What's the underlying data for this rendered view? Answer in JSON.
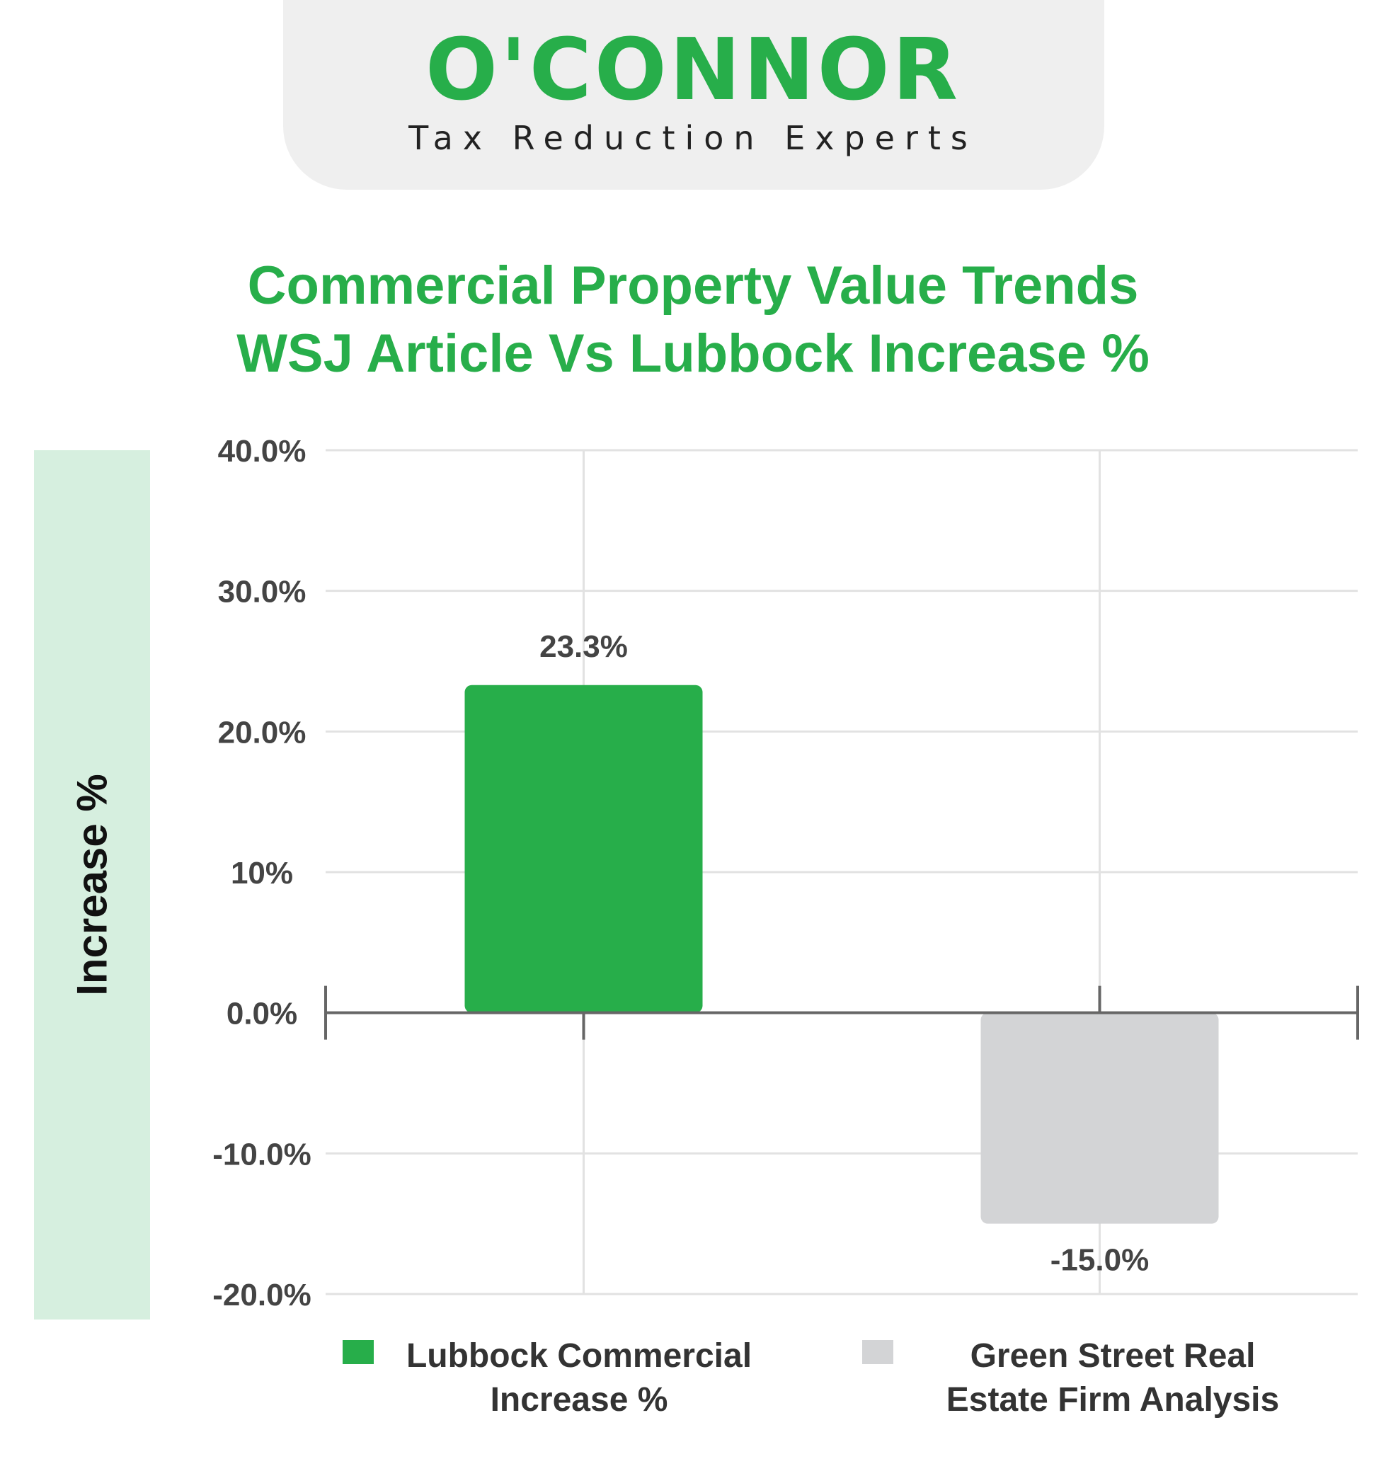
{
  "logo": {
    "wordmark": "O'CONNOR",
    "tagline": "Tax Reduction Experts"
  },
  "chart_data": {
    "type": "bar",
    "title": "Commercial Property Value Trends",
    "subtitle": "WSJ Article Vs Lubbock Increase %",
    "xlabel": "",
    "ylabel": "Increase %",
    "ylim": [
      -20,
      40
    ],
    "yticks": [
      {
        "value": 40,
        "label": "40.0%"
      },
      {
        "value": 30,
        "label": "30.0%"
      },
      {
        "value": 20,
        "label": "20.0%"
      },
      {
        "value": 10,
        "label": "10%"
      },
      {
        "value": 0,
        "label": "0.0%"
      },
      {
        "value": -10,
        "label": "-10.0%"
      },
      {
        "value": -20,
        "label": "-20.0%"
      }
    ],
    "grid": true,
    "legend_position": "bottom",
    "series": [
      {
        "name": "Lubbock Commercial Increase %",
        "value": 23.3,
        "label": "23.3%",
        "color": "#27ae4a"
      },
      {
        "name": "Green Street Real Estate Firm Analysis",
        "value": -15.0,
        "label": "-15.0%",
        "color": "#d3d4d6"
      }
    ]
  }
}
